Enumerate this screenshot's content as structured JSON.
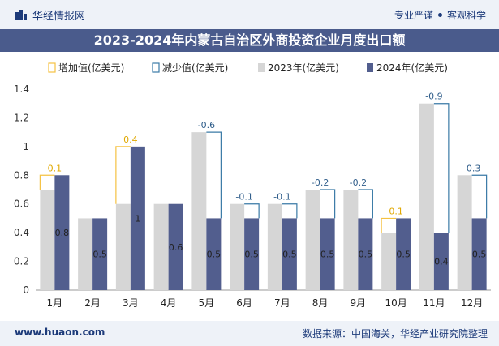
{
  "header": {
    "brand_name": "华经情报网",
    "slogan_left": "专业严谨",
    "slogan_right": "客观科学"
  },
  "footer": {
    "website": "www.huaon.com",
    "source": "数据来源：中国海关，华经产业研究院整理"
  },
  "colors": {
    "bar_2023": "#d6d6d6",
    "bar_2024": "#525e8e",
    "increase_outline": "#f5c242",
    "decrease_outline": "#3a7aa6",
    "title_bg": "#4a5b8c",
    "label_increase": "#e0a800",
    "label_decrease": "#2f5d8a"
  },
  "chart_data": {
    "type": "bar",
    "title": "2023-2024年内蒙古自治区外商投资企业月度出口额",
    "categories": [
      "1月",
      "2月",
      "3月",
      "4月",
      "5月",
      "6月",
      "7月",
      "8月",
      "9月",
      "10月",
      "11月",
      "12月"
    ],
    "series": [
      {
        "name": "2023年(亿美元)",
        "values": [
          0.7,
          0.5,
          0.6,
          0.6,
          1.1,
          0.6,
          0.6,
          0.7,
          0.7,
          0.4,
          1.3,
          0.8
        ]
      },
      {
        "name": "2024年(亿美元)",
        "values": [
          0.8,
          0.5,
          1.0,
          0.6,
          0.5,
          0.5,
          0.5,
          0.5,
          0.5,
          0.5,
          0.4,
          0.5
        ]
      }
    ],
    "change_legend": {
      "increase": "增加值(亿美元)",
      "decrease": "减少值(亿美元)"
    },
    "changes": [
      0.1,
      0,
      0.4,
      0,
      -0.6,
      -0.1,
      -0.1,
      -0.2,
      -0.2,
      0.1,
      -0.9,
      -0.3
    ],
    "change_labels": [
      "0.1",
      "",
      "0.4",
      "",
      "-0.6",
      "-0.1",
      "-0.1",
      "-0.2",
      "-0.2",
      "0.1",
      "-0.9",
      "-0.3"
    ],
    "value_labels_2024": [
      "0.8",
      "0.5",
      "1",
      "0.6",
      "0.5",
      "0.5",
      "0.5",
      "0.5",
      "0.5",
      "0.5",
      "0.4",
      "0.5"
    ],
    "yticks": [
      "0",
      "0.2",
      "0.4",
      "0.6",
      "0.8",
      "1",
      "1.2",
      "1.4"
    ],
    "ylim": [
      0,
      1.4
    ],
    "legend_position": "top",
    "grid": false
  }
}
